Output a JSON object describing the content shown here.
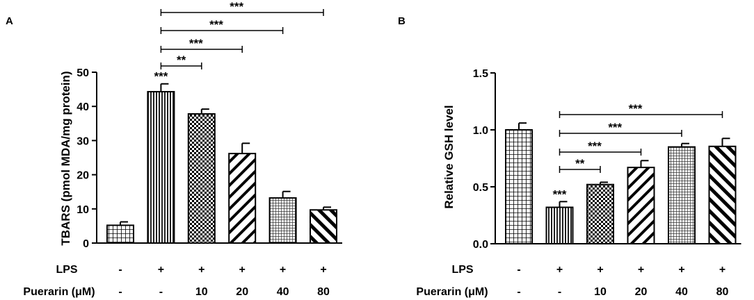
{
  "chart_data": [
    {
      "type": "bar",
      "panel_label": "A",
      "ylabel": "TBARS (pmol MDA/mg protein)",
      "ylim": [
        0,
        50
      ],
      "yticks": [
        "0",
        "10",
        "20",
        "30",
        "40",
        "50"
      ],
      "ytick_values": [
        0,
        10,
        20,
        30,
        40,
        50
      ],
      "values": [
        5.2,
        44.3,
        37.8,
        26.2,
        13.2,
        9.7
      ],
      "errors": [
        1.0,
        2.3,
        1.4,
        3.0,
        1.9,
        0.8
      ],
      "patterns": [
        "grid",
        "vlines",
        "checker",
        "diag",
        "grid-fine",
        "diag-thick"
      ],
      "lps": [
        "-",
        "+",
        "+",
        "+",
        "+",
        "+"
      ],
      "puerarin": [
        "-",
        "-",
        "10",
        "20",
        "40",
        "80"
      ],
      "bar_stars": [
        {
          "bar": 1,
          "text": "***"
        }
      ],
      "brackets": [
        {
          "from": 1,
          "to": 2,
          "text": "**"
        },
        {
          "from": 1,
          "to": 3,
          "text": "***"
        },
        {
          "from": 1,
          "to": 4,
          "text": "***"
        },
        {
          "from": 1,
          "to": 5,
          "text": "***"
        }
      ]
    },
    {
      "type": "bar",
      "panel_label": "B",
      "ylabel": "Relative GSH level",
      "ylim": [
        0,
        1.5
      ],
      "yticks": [
        "0.0",
        "0.5",
        "1.0",
        "1.5"
      ],
      "ytick_values": [
        0,
        0.5,
        1.0,
        1.5
      ],
      "values": [
        1.0,
        0.32,
        0.52,
        0.67,
        0.85,
        0.855
      ],
      "errors": [
        0.06,
        0.05,
        0.02,
        0.06,
        0.03,
        0.07
      ],
      "patterns": [
        "grid",
        "vlines",
        "checker",
        "diag",
        "grid-fine",
        "diag-thick"
      ],
      "lps": [
        "-",
        "+",
        "+",
        "+",
        "+",
        "+"
      ],
      "puerarin": [
        "-",
        "-",
        "10",
        "20",
        "40",
        "80"
      ],
      "bar_stars": [
        {
          "bar": 1,
          "text": "***"
        }
      ],
      "brackets": [
        {
          "from": 1,
          "to": 2,
          "text": "**"
        },
        {
          "from": 1,
          "to": 3,
          "text": "***"
        },
        {
          "from": 1,
          "to": 4,
          "text": "***"
        },
        {
          "from": 1,
          "to": 5,
          "text": "***"
        }
      ]
    }
  ],
  "row_labels": {
    "lps": "LPS",
    "puerarin": "Puerarin (μM)"
  }
}
